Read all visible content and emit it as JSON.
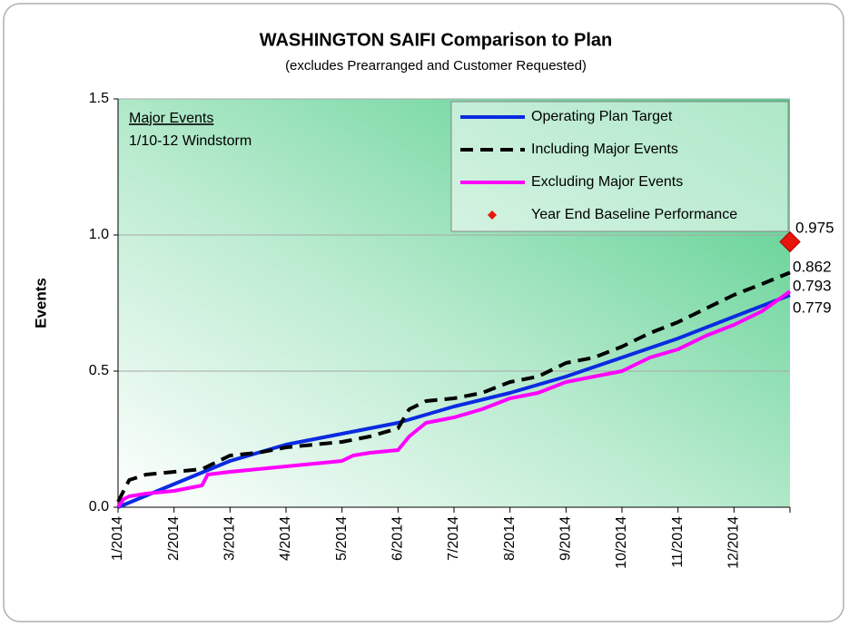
{
  "chart_data": {
    "type": "line",
    "title": "WASHINGTON SAIFI Comparison to Plan",
    "subtitle": "(excludes Prearranged and Customer Requested)",
    "y_label": "Events",
    "annotation_title": "Major Events",
    "annotation_text": "1/10-12 Windstorm",
    "xlim": [
      0,
      12
    ],
    "xticks": [
      {
        "value": 0,
        "label": "1/2014"
      },
      {
        "value": 1,
        "label": "2/2014"
      },
      {
        "value": 2,
        "label": "3/2014"
      },
      {
        "value": 3,
        "label": "4/2014"
      },
      {
        "value": 4,
        "label": "5/2014"
      },
      {
        "value": 5,
        "label": "6/2014"
      },
      {
        "value": 6,
        "label": "7/2014"
      },
      {
        "value": 7,
        "label": "8/2014"
      },
      {
        "value": 8,
        "label": "9/2014"
      },
      {
        "value": 9,
        "label": "10/2014"
      },
      {
        "value": 10,
        "label": "11/2014"
      },
      {
        "value": 11,
        "label": "12/2014"
      }
    ],
    "ylim": [
      0,
      1.5
    ],
    "yticks": [
      {
        "value": 0,
        "label": "0.0"
      },
      0.5,
      {
        "value": 1,
        "label": "1.0"
      },
      {
        "value": 1.5,
        "label": "1.5"
      }
    ],
    "grid": true,
    "legend": "top-right",
    "series": [
      {
        "name": "Operating Plan Target",
        "color": "#0a2be0",
        "label_color": "#5b8fd8",
        "x": [
          0,
          2,
          3,
          4,
          5,
          6,
          7,
          8,
          9,
          10,
          11,
          12
        ],
        "values": [
          0,
          0.17,
          0.23,
          0.27,
          0.31,
          0.37,
          0.42,
          0.48,
          0.55,
          0.62,
          0.7,
          0.779
        ]
      },
      {
        "name": "Including Major Events",
        "color": "#000000",
        "label_color": "#000000",
        "dash": true,
        "x": [
          0,
          0.2,
          0.5,
          1,
          1.5,
          2,
          2.5,
          3,
          3.5,
          4,
          4.5,
          5,
          5.2,
          5.5,
          6,
          6.5,
          7,
          7.5,
          8,
          8.5,
          9,
          9.5,
          10,
          10.5,
          11,
          11.5,
          12
        ],
        "values": [
          0.02,
          0.1,
          0.12,
          0.13,
          0.14,
          0.19,
          0.2,
          0.22,
          0.23,
          0.24,
          0.26,
          0.29,
          0.36,
          0.39,
          0.4,
          0.42,
          0.46,
          0.48,
          0.53,
          0.55,
          0.59,
          0.64,
          0.68,
          0.73,
          0.78,
          0.82,
          0.862
        ]
      },
      {
        "name": "Excluding Major Events",
        "color": "#ff00ff",
        "label_color": "#ff33cc",
        "x": [
          0,
          0.1,
          0.2,
          0.5,
          1,
          1.5,
          1.6,
          2,
          2.5,
          3,
          3.5,
          4,
          4.2,
          4.5,
          5,
          5.2,
          5.5,
          6,
          6.5,
          7,
          7.5,
          8,
          8.5,
          9,
          9.3,
          9.5,
          10,
          10.5,
          11,
          11.5,
          12
        ],
        "values": [
          0,
          0.03,
          0.04,
          0.05,
          0.06,
          0.08,
          0.12,
          0.13,
          0.14,
          0.15,
          0.16,
          0.17,
          0.19,
          0.2,
          0.21,
          0.26,
          0.31,
          0.33,
          0.36,
          0.4,
          0.42,
          0.46,
          0.48,
          0.5,
          0.53,
          0.55,
          0.58,
          0.63,
          0.67,
          0.72,
          0.793
        ]
      },
      {
        "name": "Year End Baseline Performance",
        "color": "#e8150c",
        "label_color": "#ee2222",
        "marker": "diamond",
        "x": [
          12
        ],
        "values": [
          0.975
        ]
      }
    ]
  }
}
